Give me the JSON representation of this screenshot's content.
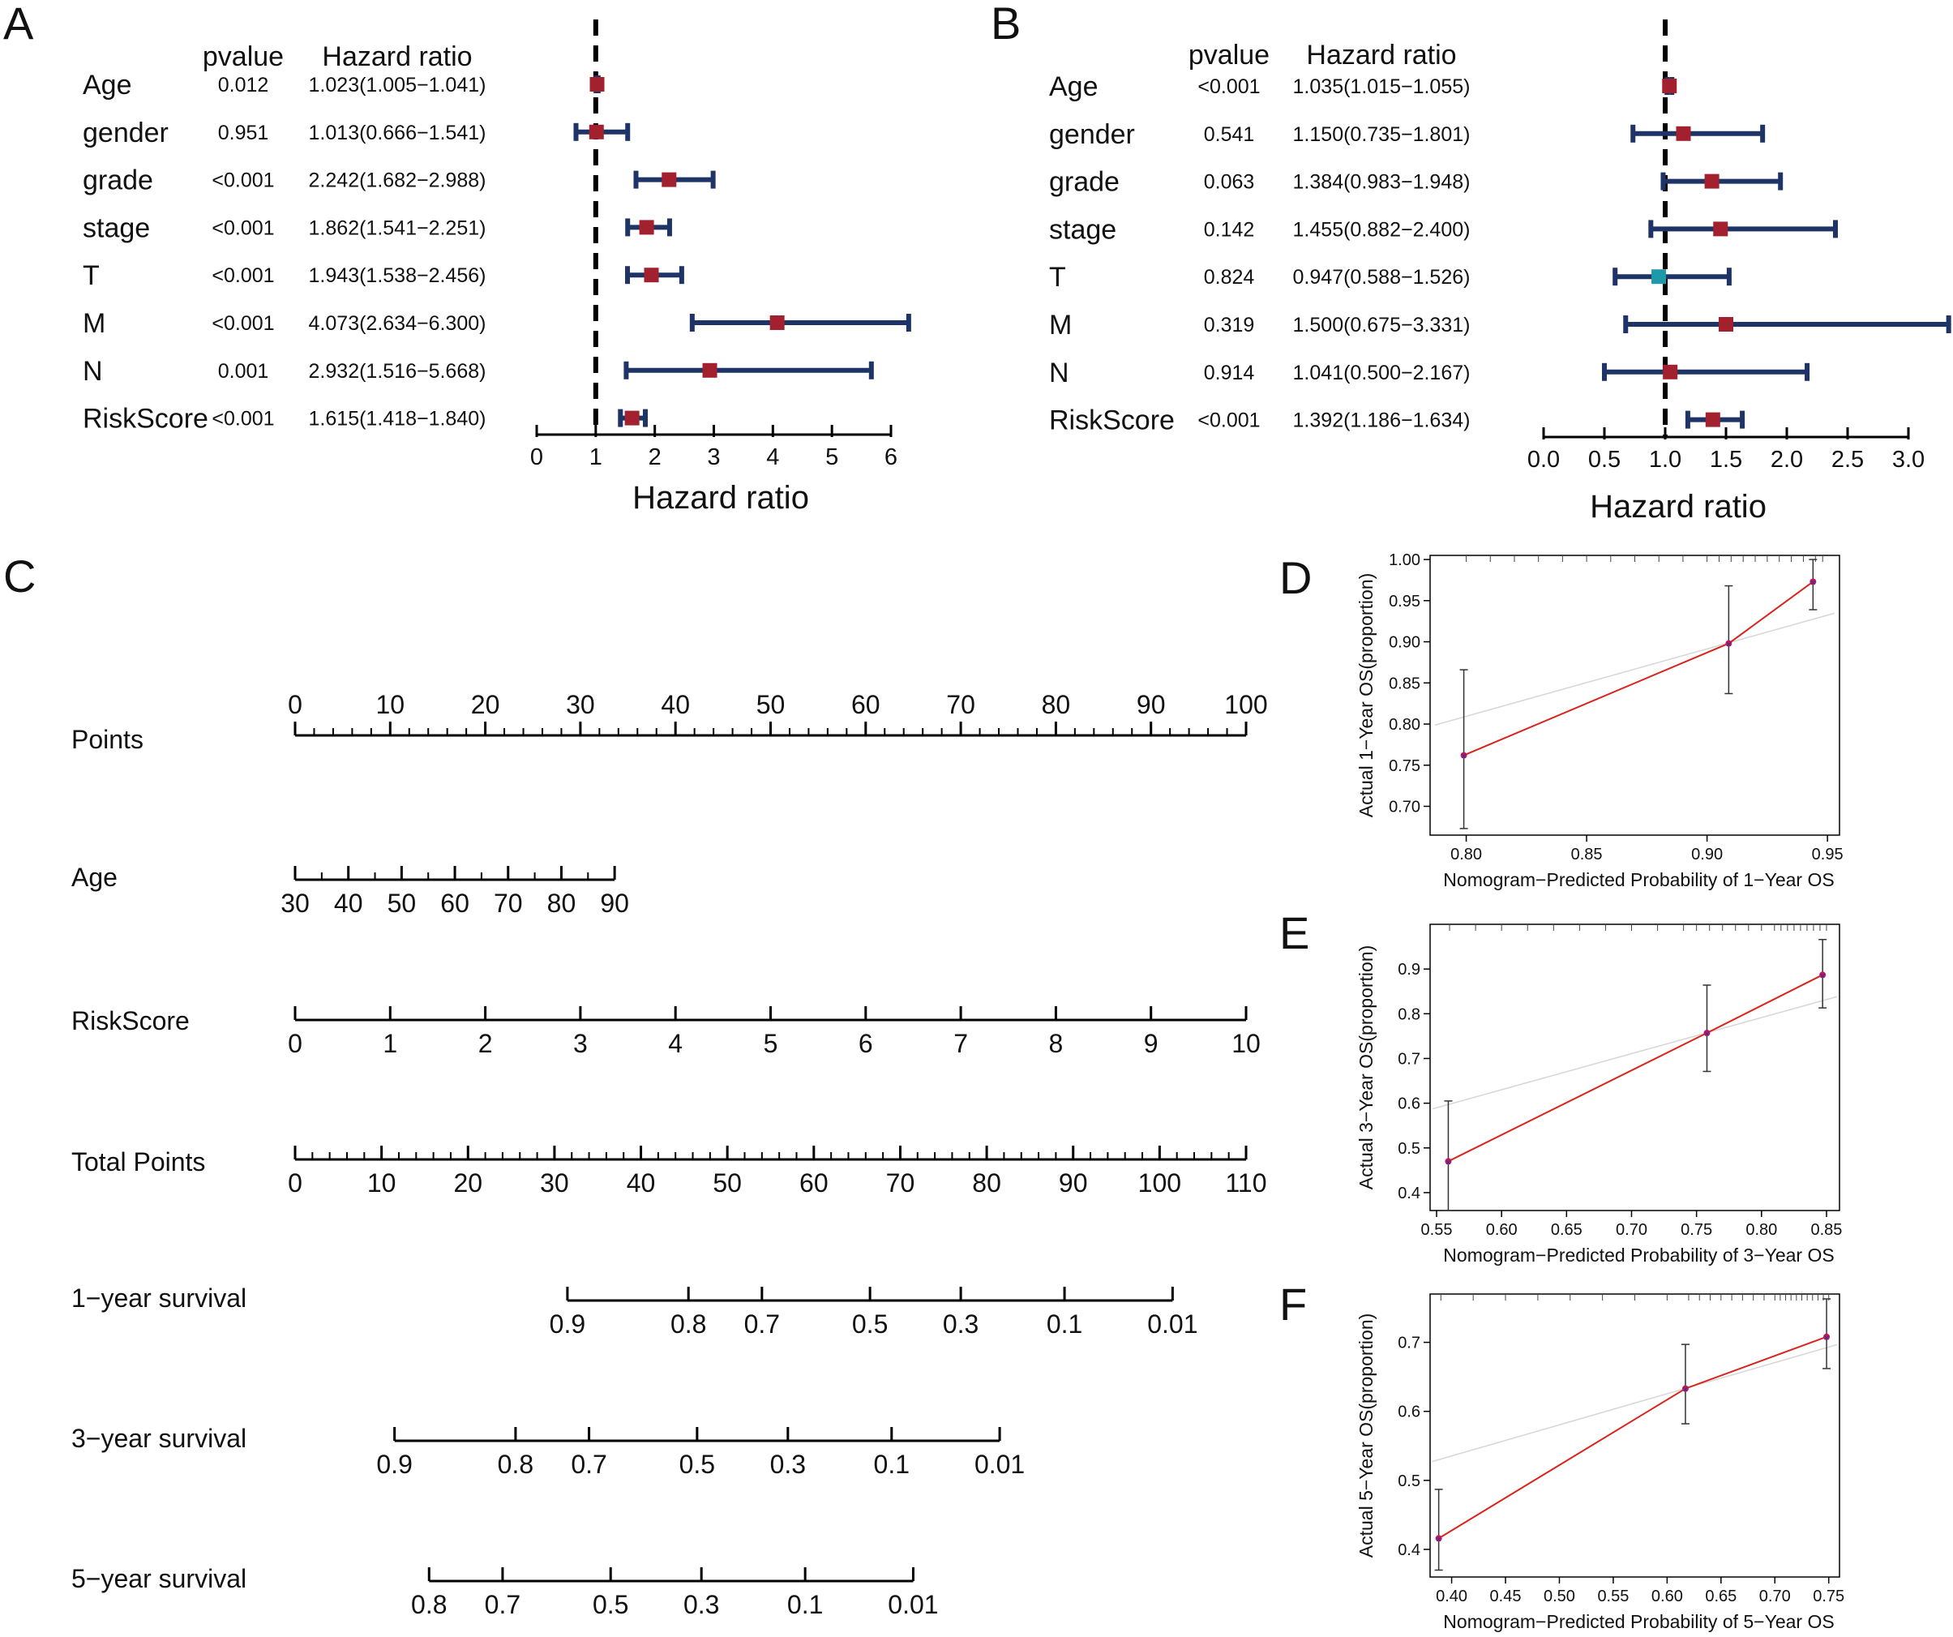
{
  "figure": {
    "panel_labels": [
      "A",
      "B",
      "C",
      "D",
      "E",
      "F"
    ]
  },
  "chart_data": [
    {
      "id": "A",
      "type": "forest",
      "headers": {
        "pvalue": "pvalue",
        "hr": "Hazard ratio"
      },
      "xlabel": "Hazard ratio",
      "xlim": [
        0,
        6
      ],
      "ticks": [
        "0",
        "1",
        "2",
        "3",
        "4",
        "5",
        "6"
      ],
      "tick_values": [
        0,
        1,
        2,
        3,
        4,
        5,
        6
      ],
      "reference": 1,
      "rows": [
        {
          "name": "Age",
          "pvalue": "0.012",
          "hr_text": "1.023(1.005−1.041)",
          "hr": 1.023,
          "lo": 1.005,
          "hi": 1.041,
          "color": "#a3202e"
        },
        {
          "name": "gender",
          "pvalue": "0.951",
          "hr_text": "1.013(0.666−1.541)",
          "hr": 1.013,
          "lo": 0.666,
          "hi": 1.541,
          "color": "#a3202e"
        },
        {
          "name": "grade",
          "pvalue": "<0.001",
          "hr_text": "2.242(1.682−2.988)",
          "hr": 2.242,
          "lo": 1.682,
          "hi": 2.988,
          "color": "#a3202e"
        },
        {
          "name": "stage",
          "pvalue": "<0.001",
          "hr_text": "1.862(1.541−2.251)",
          "hr": 1.862,
          "lo": 1.541,
          "hi": 2.251,
          "color": "#a3202e"
        },
        {
          "name": "T",
          "pvalue": "<0.001",
          "hr_text": "1.943(1.538−2.456)",
          "hr": 1.943,
          "lo": 1.538,
          "hi": 2.456,
          "color": "#a3202e"
        },
        {
          "name": "M",
          "pvalue": "<0.001",
          "hr_text": "4.073(2.634−6.300)",
          "hr": 4.073,
          "lo": 2.634,
          "hi": 6.3,
          "color": "#a3202e"
        },
        {
          "name": "N",
          "pvalue": "0.001",
          "hr_text": "2.932(1.516−5.668)",
          "hr": 2.932,
          "lo": 1.516,
          "hi": 5.668,
          "color": "#a3202e"
        },
        {
          "name": "RiskScore",
          "pvalue": "<0.001",
          "hr_text": "1.615(1.418−1.840)",
          "hr": 1.615,
          "lo": 1.418,
          "hi": 1.84,
          "color": "#a3202e"
        }
      ]
    },
    {
      "id": "B",
      "type": "forest",
      "headers": {
        "pvalue": "pvalue",
        "hr": "Hazard ratio"
      },
      "xlabel": "Hazard ratio",
      "xlim": [
        0,
        3
      ],
      "ticks": [
        "0.0",
        "0.5",
        "1.0",
        "1.5",
        "2.0",
        "2.5",
        "3.0"
      ],
      "tick_values": [
        0,
        0.5,
        1,
        1.5,
        2,
        2.5,
        3
      ],
      "reference": 1,
      "rows": [
        {
          "name": "Age",
          "pvalue": "<0.001",
          "hr_text": "1.035(1.015−1.055)",
          "hr": 1.035,
          "lo": 1.015,
          "hi": 1.055,
          "color": "#a3202e"
        },
        {
          "name": "gender",
          "pvalue": "0.541",
          "hr_text": "1.150(0.735−1.801)",
          "hr": 1.15,
          "lo": 0.735,
          "hi": 1.801,
          "color": "#a3202e"
        },
        {
          "name": "grade",
          "pvalue": "0.063",
          "hr_text": "1.384(0.983−1.948)",
          "hr": 1.384,
          "lo": 0.983,
          "hi": 1.948,
          "color": "#a3202e"
        },
        {
          "name": "stage",
          "pvalue": "0.142",
          "hr_text": "1.455(0.882−2.400)",
          "hr": 1.455,
          "lo": 0.882,
          "hi": 2.4,
          "color": "#a3202e"
        },
        {
          "name": "T",
          "pvalue": "0.824",
          "hr_text": "0.947(0.588−1.526)",
          "hr": 0.947,
          "lo": 0.588,
          "hi": 1.526,
          "color": "#1d9aaa"
        },
        {
          "name": "M",
          "pvalue": "0.319",
          "hr_text": "1.500(0.675−3.331)",
          "hr": 1.5,
          "lo": 0.675,
          "hi": 3.331,
          "color": "#a3202e"
        },
        {
          "name": "N",
          "pvalue": "0.914",
          "hr_text": "1.041(0.500−2.167)",
          "hr": 1.041,
          "lo": 0.5,
          "hi": 2.167,
          "color": "#a3202e"
        },
        {
          "name": "RiskScore",
          "pvalue": "<0.001",
          "hr_text": "1.392(1.186−1.634)",
          "hr": 1.392,
          "lo": 1.186,
          "hi": 1.634,
          "color": "#a3202e"
        }
      ]
    },
    {
      "id": "C",
      "type": "nomogram",
      "scales": [
        {
          "label": "Points",
          "min": 0,
          "max": 100,
          "minor": 2,
          "ticks": [
            {
              "v": 0,
              "t": "0"
            },
            {
              "v": 10,
              "t": "10"
            },
            {
              "v": 20,
              "t": "20"
            },
            {
              "v": 30,
              "t": "30"
            },
            {
              "v": 40,
              "t": "40"
            },
            {
              "v": 50,
              "t": "50"
            },
            {
              "v": 60,
              "t": "60"
            },
            {
              "v": 70,
              "t": "70"
            },
            {
              "v": 80,
              "t": "80"
            },
            {
              "v": 90,
              "t": "90"
            },
            {
              "v": 100,
              "t": "100"
            }
          ],
          "labels_above": true,
          "points_start": 0,
          "points_end": 100
        },
        {
          "label": "Age",
          "min": 30,
          "max": 90,
          "minor": 5,
          "ticks": [
            {
              "v": 30,
              "t": "30"
            },
            {
              "v": 40,
              "t": "40"
            },
            {
              "v": 50,
              "t": "50"
            },
            {
              "v": 60,
              "t": "60"
            },
            {
              "v": 70,
              "t": "70"
            },
            {
              "v": 80,
              "t": "80"
            },
            {
              "v": 90,
              "t": "90"
            }
          ],
          "labels_above": false,
          "points_start": 0,
          "points_end": 33.6
        },
        {
          "label": "RiskScore",
          "min": 0,
          "max": 10,
          "minor": 0,
          "ticks": [
            {
              "v": 0,
              "t": "0"
            },
            {
              "v": 1,
              "t": "1"
            },
            {
              "v": 2,
              "t": "2"
            },
            {
              "v": 3,
              "t": "3"
            },
            {
              "v": 4,
              "t": "4"
            },
            {
              "v": 5,
              "t": "5"
            },
            {
              "v": 6,
              "t": "6"
            },
            {
              "v": 7,
              "t": "7"
            },
            {
              "v": 8,
              "t": "8"
            },
            {
              "v": 9,
              "t": "9"
            },
            {
              "v": 10,
              "t": "10"
            }
          ],
          "labels_above": false,
          "points_start": 0,
          "points_end": 100
        },
        {
          "label": "Total Points",
          "min": 0,
          "max": 110,
          "minor": 2,
          "ticks": [
            {
              "v": 0,
              "t": "0"
            },
            {
              "v": 10,
              "t": "10"
            },
            {
              "v": 20,
              "t": "20"
            },
            {
              "v": 30,
              "t": "30"
            },
            {
              "v": 40,
              "t": "40"
            },
            {
              "v": 50,
              "t": "50"
            },
            {
              "v": 60,
              "t": "60"
            },
            {
              "v": 70,
              "t": "70"
            },
            {
              "v": 80,
              "t": "80"
            },
            {
              "v": 90,
              "t": "90"
            },
            {
              "v": 100,
              "t": "100"
            },
            {
              "v": 110,
              "t": "110"
            }
          ],
          "labels_above": false,
          "points_start": 0,
          "points_end": 100
        },
        {
          "label": "1−year survival",
          "total_scale": true,
          "ticks": [
            {
              "v": 31.5,
              "t": "0.9"
            },
            {
              "v": 45.5,
              "t": "0.8"
            },
            {
              "v": 54.0,
              "t": "0.7"
            },
            {
              "v": 66.5,
              "t": "0.5"
            },
            {
              "v": 77.0,
              "t": "0.3"
            },
            {
              "v": 89.0,
              "t": "0.1"
            },
            {
              "v": 101.5,
              "t": "0.01"
            }
          ],
          "line_range": [
            31.5,
            101.5
          ]
        },
        {
          "label": "3−year survival",
          "total_scale": true,
          "ticks": [
            {
              "v": 11.5,
              "t": "0.9"
            },
            {
              "v": 25.5,
              "t": "0.8"
            },
            {
              "v": 34.0,
              "t": "0.7"
            },
            {
              "v": 46.5,
              "t": "0.5"
            },
            {
              "v": 57.0,
              "t": "0.3"
            },
            {
              "v": 69.0,
              "t": "0.1"
            },
            {
              "v": 81.5,
              "t": "0.01"
            }
          ],
          "line_range": [
            11.5,
            81.5
          ]
        },
        {
          "label": "5−year survival",
          "total_scale": true,
          "ticks": [
            {
              "v": 15.5,
              "t": "0.8"
            },
            {
              "v": 24.0,
              "t": "0.7"
            },
            {
              "v": 36.5,
              "t": "0.5"
            },
            {
              "v": 47.0,
              "t": "0.3"
            },
            {
              "v": 59.0,
              "t": "0.1"
            },
            {
              "v": 71.5,
              "t": "0.01"
            }
          ],
          "line_range": [
            15.5,
            71.5
          ]
        }
      ]
    },
    {
      "id": "D",
      "type": "calibration",
      "xlabel": "Nomogram−Predicted Probability of 1−Year OS",
      "ylabel": "Actual 1−Year OS(proportion)",
      "xlim": [
        0.785,
        0.955
      ],
      "ylim": [
        0.665,
        1.005
      ],
      "xticks": [
        {
          "v": 0.8,
          "t": "0.80"
        },
        {
          "v": 0.85,
          "t": "0.85"
        },
        {
          "v": 0.9,
          "t": "0.90"
        },
        {
          "v": 0.95,
          "t": "0.95"
        }
      ],
      "yticks": [
        {
          "v": 0.7,
          "t": "0.70"
        },
        {
          "v": 0.75,
          "t": "0.75"
        },
        {
          "v": 0.8,
          "t": "0.80"
        },
        {
          "v": 0.85,
          "t": "0.85"
        },
        {
          "v": 0.9,
          "t": "0.90"
        },
        {
          "v": 0.95,
          "t": "0.95"
        },
        {
          "v": 1.0,
          "t": "1.00"
        }
      ],
      "rug": [
        0.8,
        0.81,
        0.82,
        0.83,
        0.84,
        0.85,
        0.86,
        0.87,
        0.88,
        0.89,
        0.9,
        0.905,
        0.91,
        0.915,
        0.92,
        0.925,
        0.93,
        0.935,
        0.94,
        0.945,
        0.948
      ],
      "points": [
        {
          "x": 0.799,
          "y": 0.762,
          "lo": 0.673,
          "hi": 0.866
        },
        {
          "x": 0.909,
          "y": 0.898,
          "lo": 0.837,
          "hi": 0.968
        },
        {
          "x": 0.944,
          "y": 0.973,
          "lo": 0.939,
          "hi": 1.0
        }
      ]
    },
    {
      "id": "E",
      "type": "calibration",
      "xlabel": "Nomogram−Predicted Probability of 3−Year OS",
      "ylabel": "Actual 3−Year OS(proportion)",
      "xlim": [
        0.545,
        0.86
      ],
      "ylim": [
        0.36,
        1.0
      ],
      "xticks": [
        {
          "v": 0.55,
          "t": "0.55"
        },
        {
          "v": 0.6,
          "t": "0.60"
        },
        {
          "v": 0.65,
          "t": "0.65"
        },
        {
          "v": 0.7,
          "t": "0.70"
        },
        {
          "v": 0.75,
          "t": "0.75"
        },
        {
          "v": 0.8,
          "t": "0.80"
        },
        {
          "v": 0.85,
          "t": "0.85"
        }
      ],
      "yticks": [
        {
          "v": 0.4,
          "t": "0.4"
        },
        {
          "v": 0.5,
          "t": "0.5"
        },
        {
          "v": 0.6,
          "t": "0.6"
        },
        {
          "v": 0.7,
          "t": "0.7"
        },
        {
          "v": 0.8,
          "t": "0.8"
        },
        {
          "v": 0.9,
          "t": "0.9"
        }
      ],
      "rug": [
        0.56,
        0.58,
        0.6,
        0.62,
        0.64,
        0.66,
        0.68,
        0.7,
        0.72,
        0.74,
        0.75,
        0.76,
        0.77,
        0.78,
        0.79,
        0.8,
        0.81,
        0.815,
        0.82,
        0.825,
        0.83,
        0.835,
        0.84,
        0.845,
        0.85
      ],
      "points": [
        {
          "x": 0.559,
          "y": 0.47,
          "lo": 0.36,
          "hi": 0.605
        },
        {
          "x": 0.758,
          "y": 0.757,
          "lo": 0.671,
          "hi": 0.864
        },
        {
          "x": 0.847,
          "y": 0.887,
          "lo": 0.813,
          "hi": 0.966
        }
      ]
    },
    {
      "id": "F",
      "type": "calibration",
      "xlabel": "Nomogram−Predicted Probability of 5−Year OS",
      "ylabel": "Actual 5−Year OS(proportion)",
      "xlim": [
        0.38,
        0.76
      ],
      "ylim": [
        0.36,
        0.77
      ],
      "xticks": [
        {
          "v": 0.4,
          "t": "0.40"
        },
        {
          "v": 0.45,
          "t": "0.45"
        },
        {
          "v": 0.5,
          "t": "0.50"
        },
        {
          "v": 0.55,
          "t": "0.55"
        },
        {
          "v": 0.6,
          "t": "0.60"
        },
        {
          "v": 0.65,
          "t": "0.65"
        },
        {
          "v": 0.7,
          "t": "0.70"
        },
        {
          "v": 0.75,
          "t": "0.75"
        }
      ],
      "yticks": [
        {
          "v": 0.4,
          "t": "0.4"
        },
        {
          "v": 0.5,
          "t": "0.5"
        },
        {
          "v": 0.6,
          "t": "0.6"
        },
        {
          "v": 0.7,
          "t": "0.7"
        }
      ],
      "rug": [
        0.39,
        0.42,
        0.45,
        0.48,
        0.51,
        0.54,
        0.57,
        0.6,
        0.62,
        0.63,
        0.64,
        0.65,
        0.66,
        0.67,
        0.68,
        0.69,
        0.7,
        0.705,
        0.71,
        0.715,
        0.72,
        0.725,
        0.73,
        0.735,
        0.74,
        0.745,
        0.75
      ],
      "points": [
        {
          "x": 0.388,
          "y": 0.416,
          "lo": 0.37,
          "hi": 0.487
        },
        {
          "x": 0.617,
          "y": 0.633,
          "lo": 0.582,
          "hi": 0.697
        },
        {
          "x": 0.748,
          "y": 0.708,
          "lo": 0.662,
          "hi": 0.763
        }
      ]
    }
  ]
}
